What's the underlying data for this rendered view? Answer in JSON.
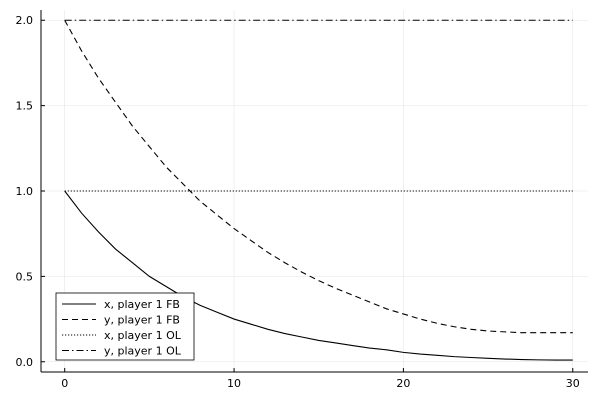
{
  "chart_data": {
    "type": "line",
    "title": "",
    "xlabel": "",
    "ylabel": "",
    "xlim": [
      -1.4,
      30.9
    ],
    "ylim": [
      -0.06,
      2.06
    ],
    "xticks": [
      0,
      10,
      20,
      30
    ],
    "yticks": [
      0.0,
      0.5,
      1.0,
      1.5,
      2.0
    ],
    "xtick_labels": [
      "0",
      "10",
      "20",
      "30"
    ],
    "ytick_labels": [
      "0.0",
      "0.5",
      "1.0",
      "1.5",
      "2.0"
    ],
    "grid": true,
    "legend_position": "bottom-left",
    "series": [
      {
        "name": "x, player 1 FB",
        "style": "solid",
        "color": "#000000",
        "x": [
          0,
          1,
          2,
          3,
          4,
          5,
          6,
          7,
          8,
          9,
          10,
          11,
          12,
          13,
          14,
          15,
          16,
          17,
          18,
          19,
          20,
          21,
          22,
          23,
          24,
          25,
          26,
          27,
          28,
          29,
          30
        ],
        "y": [
          1.0,
          0.87,
          0.76,
          0.66,
          0.58,
          0.5,
          0.44,
          0.38,
          0.33,
          0.29,
          0.25,
          0.22,
          0.19,
          0.165,
          0.145,
          0.125,
          0.11,
          0.095,
          0.08,
          0.07,
          0.055,
          0.045,
          0.038,
          0.03,
          0.025,
          0.02,
          0.016,
          0.013,
          0.011,
          0.01,
          0.01
        ]
      },
      {
        "name": "y, player 1 FB",
        "style": "dashed",
        "color": "#000000",
        "x": [
          0,
          1,
          2,
          3,
          4,
          5,
          6,
          7,
          8,
          9,
          10,
          11,
          12,
          13,
          14,
          15,
          16,
          17,
          18,
          19,
          20,
          21,
          22,
          23,
          24,
          25,
          26,
          27,
          28,
          29,
          30
        ],
        "y": [
          2.0,
          1.82,
          1.66,
          1.52,
          1.38,
          1.26,
          1.14,
          1.04,
          0.94,
          0.86,
          0.78,
          0.71,
          0.64,
          0.58,
          0.525,
          0.475,
          0.43,
          0.39,
          0.35,
          0.31,
          0.28,
          0.25,
          0.225,
          0.205,
          0.19,
          0.18,
          0.175,
          0.17,
          0.17,
          0.17,
          0.17
        ]
      },
      {
        "name": "x, player 1 OL",
        "style": "dotted",
        "color": "#000000",
        "x": [
          0,
          30
        ],
        "y": [
          1.0,
          1.0
        ]
      },
      {
        "name": "y, player 1 OL",
        "style": "dashdot",
        "color": "#000000",
        "x": [
          0,
          30
        ],
        "y": [
          2.0,
          2.0
        ]
      }
    ]
  }
}
